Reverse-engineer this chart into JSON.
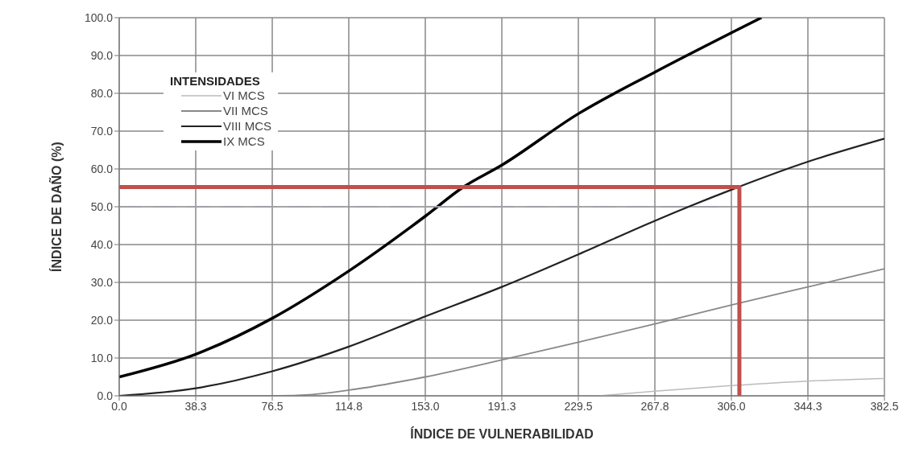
{
  "chart_data": {
    "type": "line",
    "xlabel": "ÍNDICE DE VULNERABILIDAD",
    "ylabel": "ÍNDICE DE DAÑO (%)",
    "legend_title": "INTENSIDADES",
    "legend": "top left",
    "grid": true,
    "marker": "none",
    "xlim": [
      0,
      382.5
    ],
    "ylim": [
      0,
      100
    ],
    "xticks": [
      {
        "value": 0,
        "label": "0.0"
      },
      {
        "value": 38.25,
        "label": "38.3"
      },
      {
        "value": 76.5,
        "label": "76.5"
      },
      {
        "value": 114.75,
        "label": "114.8"
      },
      {
        "value": 153,
        "label": "153.0"
      },
      {
        "value": 191.25,
        "label": "191.3"
      },
      {
        "value": 229.5,
        "label": "229.5"
      },
      {
        "value": 267.75,
        "label": "267.8"
      },
      {
        "value": 306,
        "label": "306.0"
      },
      {
        "value": 344.25,
        "label": "344.3"
      },
      {
        "value": 382.5,
        "label": "382.5"
      }
    ],
    "yticks": [
      {
        "value": 0,
        "label": "0.0"
      },
      {
        "value": 10,
        "label": "10.0"
      },
      {
        "value": 20,
        "label": "20.0"
      },
      {
        "value": 30,
        "label": "30.0"
      },
      {
        "value": 40,
        "label": "40.0"
      },
      {
        "value": 50,
        "label": "50.0"
      },
      {
        "value": 60,
        "label": "60.0"
      },
      {
        "value": 70,
        "label": "70.0"
      },
      {
        "value": 80,
        "label": "80.0"
      },
      {
        "value": 90,
        "label": "90.0"
      },
      {
        "value": 100,
        "label": "100.0"
      }
    ],
    "series": [
      {
        "name": "VI MCS",
        "color": "#bbbbbb",
        "x": [
          240,
          267.75,
          306,
          344.25,
          382.5
        ],
        "values": [
          0,
          1.2,
          2.7,
          3.9,
          4.6
        ]
      },
      {
        "name": "VII MCS",
        "color": "#888888",
        "x": [
          0,
          80,
          95,
          114.75,
          153,
          191.25,
          229.5,
          267.75,
          306,
          344.25,
          382.5
        ],
        "values": [
          0,
          0,
          0.3,
          1.5,
          5,
          9.5,
          14.2,
          19,
          24,
          28.8,
          33.6
        ]
      },
      {
        "name": "VIII MCS",
        "color": "#222222",
        "x": [
          0,
          38.25,
          76.5,
          114.75,
          153,
          191.25,
          229.5,
          267.75,
          306,
          344.25,
          382.5
        ],
        "values": [
          0,
          2,
          6.5,
          13,
          21,
          28.8,
          37.4,
          46.3,
          54.5,
          61.9,
          68
        ]
      },
      {
        "name": "IX MCS",
        "color": "#000000",
        "x": [
          0,
          38.25,
          76.5,
          114.75,
          153,
          172,
          191.25,
          229.5,
          267.75,
          306,
          321
        ],
        "values": [
          5,
          11,
          20.5,
          33,
          47.5,
          55.2,
          61,
          74.6,
          85.6,
          96,
          100
        ]
      },
      {
        "color": "#a0a0a8",
        "line_style": "dashed",
        "x": [
          0,
          300
        ],
        "values": [
          50,
          50
        ]
      },
      {
        "color": "#c0504d",
        "x": [
          0,
          310,
          310
        ],
        "values": [
          55.2,
          55.2,
          0
        ]
      }
    ]
  }
}
